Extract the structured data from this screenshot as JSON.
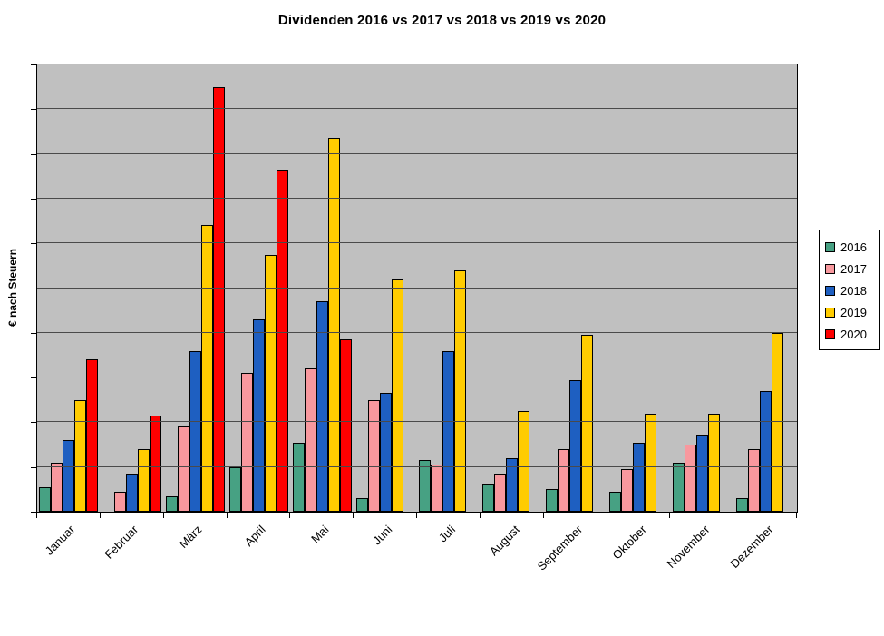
{
  "chart_data": {
    "type": "bar",
    "title": "Dividenden 2016 vs 2017 vs 2018 vs 2019 vs 2020",
    "xlabel": "",
    "ylabel": "€ nach Steuern",
    "categories": [
      "Januar",
      "Februar",
      "März",
      "April",
      "Mai",
      "Juni",
      "Juli",
      "August",
      "September",
      "Oktober",
      "November",
      "Dezember"
    ],
    "series": [
      {
        "name": "2016",
        "color": "#47A183",
        "values": [
          0.55,
          0,
          0.35,
          1.0,
          1.55,
          0.3,
          1.15,
          0.6,
          0.5,
          0.45,
          1.1,
          0.3
        ]
      },
      {
        "name": "2017",
        "color": "#F8989E",
        "values": [
          1.1,
          0.45,
          1.9,
          3.1,
          3.2,
          2.5,
          1.05,
          0.85,
          1.4,
          0.95,
          1.5,
          1.4
        ]
      },
      {
        "name": "2018",
        "color": "#1E5FC1",
        "values": [
          1.6,
          0.85,
          3.6,
          4.3,
          4.7,
          2.65,
          3.6,
          1.2,
          2.95,
          1.55,
          1.7,
          2.7
        ]
      },
      {
        "name": "2019",
        "color": "#FFCC00",
        "values": [
          2.5,
          1.4,
          6.4,
          5.75,
          8.35,
          5.2,
          5.4,
          2.25,
          3.95,
          2.2,
          2.2,
          4.0
        ]
      },
      {
        "name": "2020",
        "color": "#FE0000",
        "values": [
          3.4,
          2.15,
          9.5,
          7.65,
          3.85,
          0,
          0,
          0,
          0,
          0,
          0,
          0
        ]
      }
    ],
    "ylim": [
      0,
      10
    ],
    "gridline_step": 1,
    "y_tick_labels": "hidden",
    "grid": "horizontal gridlines on",
    "legend_position": "right",
    "plot_background": "#C0C0C0",
    "note": "y-axis shows no numeric tick labels; bar values estimated in gridline units (1 unit = one gridline spacing)"
  }
}
